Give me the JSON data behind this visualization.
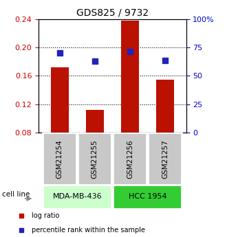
{
  "title": "GDS825 / 9732",
  "samples": [
    "GSM21254",
    "GSM21255",
    "GSM21256",
    "GSM21257"
  ],
  "log_ratio": [
    0.172,
    0.112,
    0.238,
    0.155
  ],
  "percentile_rank": [
    70.0,
    63.0,
    71.5,
    63.5
  ],
  "ylim_left": [
    0.08,
    0.24
  ],
  "ylim_right": [
    0.0,
    100.0
  ],
  "yticks_left": [
    0.08,
    0.12,
    0.16,
    0.2,
    0.24
  ],
  "yticks_right": [
    0,
    25,
    50,
    75,
    100
  ],
  "bar_color": "#BB1100",
  "dot_color": "#2222BB",
  "cell_lines": [
    {
      "label": "MDA-MB-436",
      "samples": [
        0,
        1
      ],
      "color": "#CCFFCC"
    },
    {
      "label": "HCC 1954",
      "samples": [
        2,
        3
      ],
      "color": "#33CC33"
    }
  ],
  "sample_box_color": "#C8C8C8",
  "left_axis_color": "#CC0000",
  "right_axis_color": "#0000CC",
  "bar_width": 0.5,
  "title_fontsize": 10,
  "tick_fontsize": 8,
  "label_fontsize": 7.5,
  "legend_fontsize": 7
}
